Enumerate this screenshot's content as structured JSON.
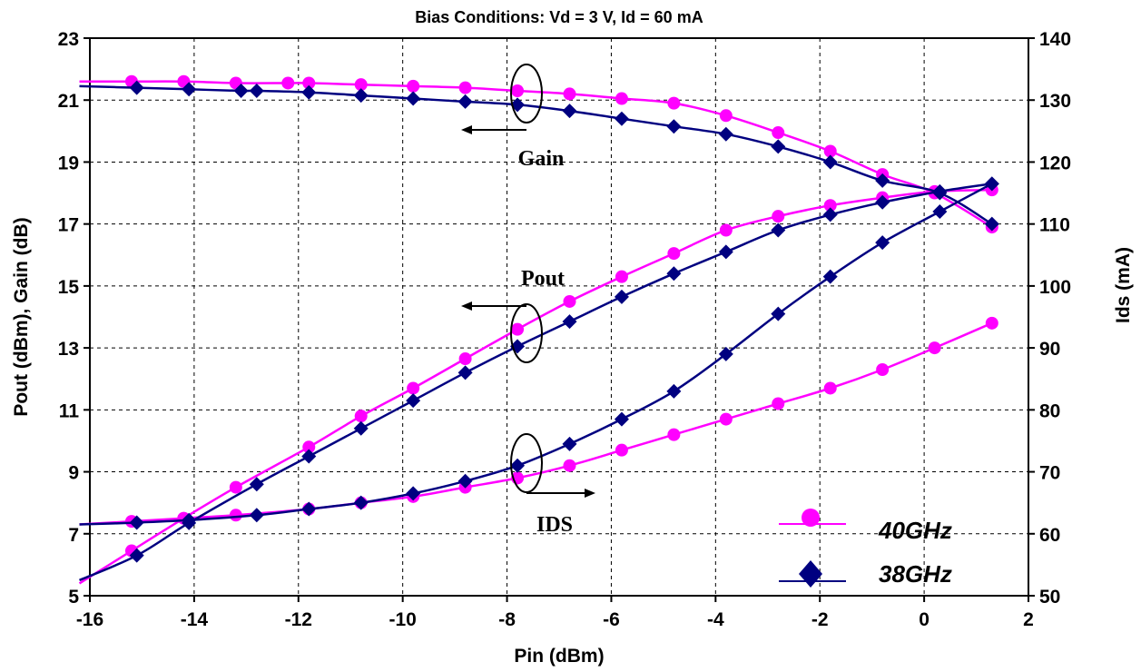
{
  "chart_data": {
    "type": "line",
    "title": "Bias Conditions:  Vd = 3 V, Id = 60 mA",
    "xlabel": "Pin (dBm)",
    "ylabel": "Pout (dBm), Gain (dB)",
    "y2label": "Ids (mA)",
    "xlim": [
      -16,
      2
    ],
    "ylim": [
      5,
      23
    ],
    "y2lim": [
      50,
      140
    ],
    "xticks": [
      "-16",
      "-14",
      "-12",
      "-10",
      "-8",
      "-6",
      "-4",
      "-2",
      "0",
      "2"
    ],
    "yticks": [
      "5",
      "7",
      "9",
      "11",
      "13",
      "15",
      "17",
      "19",
      "21",
      "23"
    ],
    "y2ticks": [
      "50",
      "60",
      "70",
      "80",
      "90",
      "100",
      "110",
      "120",
      "130",
      "140"
    ],
    "grid": true,
    "legend_position": "bottom-right",
    "annotations": [
      "Gain",
      "Pout",
      "IDS"
    ],
    "series": [
      {
        "name": "40GHz",
        "marker": "circle",
        "color": "#FF00FF",
        "quantity": "Gain",
        "axis": "left",
        "x": [
          -16.2,
          -15.2,
          -14.2,
          -13.2,
          -12.2,
          -11.8,
          -10.8,
          -9.8,
          -8.8,
          -7.8,
          -6.8,
          -5.8,
          -4.8,
          -3.8,
          -2.8,
          -1.8,
          -0.8,
          0.2,
          1.3
        ],
        "y": [
          21.6,
          21.6,
          21.6,
          21.55,
          21.55,
          21.55,
          21.5,
          21.45,
          21.4,
          21.3,
          21.2,
          21.05,
          20.9,
          20.5,
          19.95,
          19.35,
          18.6,
          18.0,
          16.9
        ]
      },
      {
        "name": "38GHz",
        "marker": "diamond",
        "color": "#000080",
        "quantity": "Gain",
        "axis": "left",
        "x": [
          -16.2,
          -15.1,
          -14.1,
          -13.1,
          -12.8,
          -11.8,
          -10.8,
          -9.8,
          -8.8,
          -7.8,
          -6.8,
          -5.8,
          -4.8,
          -3.8,
          -2.8,
          -1.8,
          -0.8,
          0.3,
          1.3
        ],
        "y": [
          21.45,
          21.4,
          21.35,
          21.3,
          21.3,
          21.25,
          21.15,
          21.05,
          20.95,
          20.85,
          20.65,
          20.4,
          20.15,
          19.9,
          19.5,
          19.0,
          18.4,
          18.0,
          17.0
        ]
      },
      {
        "name": "40GHz",
        "marker": "circle",
        "color": "#FF00FF",
        "quantity": "Pout",
        "axis": "left",
        "x": [
          -16.2,
          -15.2,
          -14.2,
          -13.2,
          -11.8,
          -10.8,
          -9.8,
          -8.8,
          -7.8,
          -6.8,
          -5.8,
          -4.8,
          -3.8,
          -2.8,
          -1.8,
          -0.8,
          0.2,
          1.3
        ],
        "y": [
          5.4,
          6.45,
          7.5,
          8.5,
          9.8,
          10.8,
          11.7,
          12.65,
          13.6,
          14.5,
          15.3,
          16.05,
          16.8,
          17.25,
          17.6,
          17.85,
          18.05,
          18.1
        ]
      },
      {
        "name": "38GHz",
        "marker": "diamond",
        "color": "#000080",
        "quantity": "Pout",
        "axis": "left",
        "x": [
          -16.2,
          -15.1,
          -14.1,
          -12.8,
          -11.8,
          -10.8,
          -9.8,
          -8.8,
          -7.8,
          -6.8,
          -5.8,
          -4.8,
          -3.8,
          -2.8,
          -1.8,
          -0.8,
          0.3,
          1.3
        ],
        "y": [
          5.5,
          6.3,
          7.35,
          8.6,
          9.5,
          10.4,
          11.3,
          12.2,
          13.05,
          13.85,
          14.65,
          15.4,
          16.1,
          16.8,
          17.3,
          17.7,
          18.05,
          18.3
        ]
      },
      {
        "name": "40GHz",
        "marker": "circle",
        "color": "#FF00FF",
        "quantity": "Ids",
        "axis": "right",
        "x": [
          -16.2,
          -15.2,
          -14.2,
          -13.2,
          -11.8,
          -10.8,
          -9.8,
          -8.8,
          -7.8,
          -6.8,
          -5.8,
          -4.8,
          -3.8,
          -2.8,
          -1.8,
          -0.8,
          0.2,
          1.3
        ],
        "y": [
          61.5,
          62.0,
          62.5,
          63.0,
          64.0,
          65.0,
          66.0,
          67.5,
          69.0,
          71.0,
          73.5,
          76.0,
          78.5,
          81.0,
          83.5,
          86.5,
          90.0,
          94.0
        ]
      },
      {
        "name": "38GHz",
        "marker": "diamond",
        "color": "#000080",
        "quantity": "Ids",
        "axis": "right",
        "x": [
          -16.2,
          -15.1,
          -14.1,
          -12.8,
          -11.8,
          -10.8,
          -9.8,
          -8.8,
          -7.8,
          -6.8,
          -5.8,
          -4.8,
          -3.8,
          -2.8,
          -1.8,
          -0.8,
          0.3,
          1.3
        ],
        "y": [
          61.5,
          61.8,
          62.2,
          63.0,
          64.0,
          65.0,
          66.5,
          68.5,
          71.0,
          74.5,
          78.5,
          83.0,
          89.0,
          95.5,
          101.5,
          107.0,
          112.0,
          116.5
        ]
      }
    ]
  }
}
